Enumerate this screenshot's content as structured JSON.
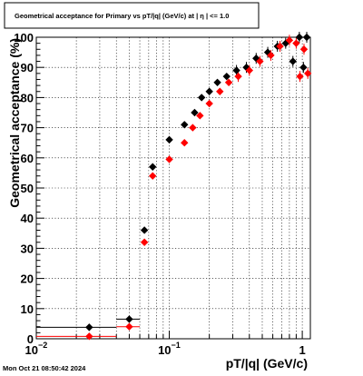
{
  "chart_data": {
    "type": "scatter",
    "title": "Geometrical acceptance for Primary vs pT/|q| (GeV/c) at |  η | <= 1.0",
    "xlabel": "pT/|q| (GeV/c)",
    "ylabel": "Geometrical acceptance (%)",
    "x_scale": "log",
    "xlim": [
      0.01,
      1.15
    ],
    "ylim": [
      0,
      100
    ],
    "x_ticks": [
      {
        "value": 0.01,
        "label": "10",
        "exp": "−2"
      },
      {
        "value": 0.1,
        "label": "10",
        "exp": "−1"
      },
      {
        "value": 1,
        "label": "1",
        "exp": ""
      }
    ],
    "y_ticks": [
      0,
      10,
      20,
      30,
      40,
      50,
      60,
      70,
      80,
      90,
      100
    ],
    "grid": true,
    "series": [
      {
        "color": "#000000",
        "points": [
          {
            "x": 0.025,
            "y": 3.8,
            "xerr": [
              0.01,
              0.04
            ]
          },
          {
            "x": 0.05,
            "y": 6.5,
            "xerr": [
              0.04,
              0.06
            ]
          },
          {
            "x": 0.065,
            "y": 36
          },
          {
            "x": 0.075,
            "y": 57
          },
          {
            "x": 0.1,
            "y": 66
          },
          {
            "x": 0.13,
            "y": 71
          },
          {
            "x": 0.155,
            "y": 75
          },
          {
            "x": 0.175,
            "y": 80
          },
          {
            "x": 0.2,
            "y": 82
          },
          {
            "x": 0.23,
            "y": 85
          },
          {
            "x": 0.27,
            "y": 87
          },
          {
            "x": 0.32,
            "y": 89
          },
          {
            "x": 0.38,
            "y": 90
          },
          {
            "x": 0.45,
            "y": 93
          },
          {
            "x": 0.55,
            "y": 95
          },
          {
            "x": 0.65,
            "y": 97
          },
          {
            "x": 0.75,
            "y": 98
          },
          {
            "x": 0.85,
            "y": 92
          },
          {
            "x": 0.95,
            "y": 100
          },
          {
            "x": 1.02,
            "y": 90
          },
          {
            "x": 1.08,
            "y": 100
          }
        ]
      },
      {
        "color": "#ff0000",
        "points": [
          {
            "x": 0.025,
            "y": 0.8,
            "xerr": [
              0.01,
              0.04
            ]
          },
          {
            "x": 0.05,
            "y": 4,
            "xerr": [
              0.04,
              0.06
            ]
          },
          {
            "x": 0.065,
            "y": 32
          },
          {
            "x": 0.075,
            "y": 54
          },
          {
            "x": 0.1,
            "y": 59.5
          },
          {
            "x": 0.13,
            "y": 65
          },
          {
            "x": 0.15,
            "y": 70
          },
          {
            "x": 0.17,
            "y": 74
          },
          {
            "x": 0.2,
            "y": 78
          },
          {
            "x": 0.24,
            "y": 82
          },
          {
            "x": 0.28,
            "y": 85
          },
          {
            "x": 0.33,
            "y": 87
          },
          {
            "x": 0.4,
            "y": 89
          },
          {
            "x": 0.48,
            "y": 92
          },
          {
            "x": 0.58,
            "y": 94
          },
          {
            "x": 0.68,
            "y": 97
          },
          {
            "x": 0.8,
            "y": 99
          },
          {
            "x": 0.9,
            "y": 98
          },
          {
            "x": 0.96,
            "y": 87
          },
          {
            "x": 1.03,
            "y": 96
          },
          {
            "x": 1.1,
            "y": 88
          }
        ]
      }
    ]
  },
  "footer": {
    "timestamp": "Mon Oct 21 08:50:42 2024"
  }
}
